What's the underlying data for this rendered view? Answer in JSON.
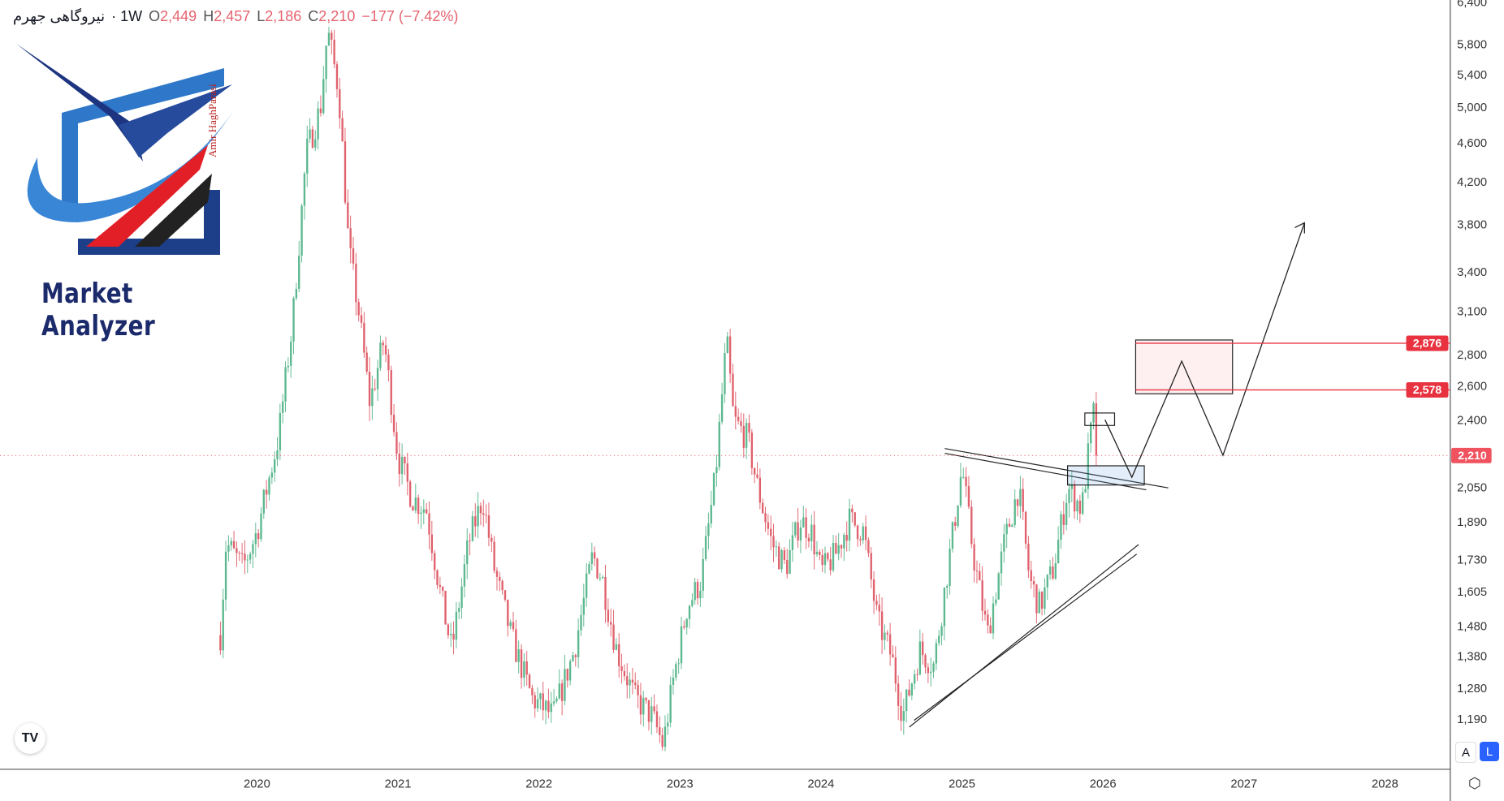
{
  "header": {
    "symbol": "نیروگاهی جهرم",
    "interval": "· 1W",
    "open_label": "O",
    "open": "2,449",
    "high_label": "H",
    "high": "2,457",
    "low_label": "L",
    "low": "2,186",
    "close_label": "C",
    "close": "2,210",
    "change": "−177 (−7.42%)"
  },
  "logo": {
    "title": "Market Analyzer",
    "author": "Amir HaghParasi"
  },
  "colors": {
    "up": "#5cb88f",
    "down": "#e0616c",
    "level": "#e8323f",
    "last_price": "#f0525f",
    "accent": "#2962ff"
  },
  "chart_data": {
    "type": "candlestick",
    "scale": "log",
    "ylim": [
      1100,
      6400
    ],
    "xlim": [
      2019.5,
      2028.4
    ],
    "y_ticks": [
      "6,400",
      "5,800",
      "5,400",
      "5,000",
      "4,600",
      "4,200",
      "3,800",
      "3,400",
      "3,100",
      "2,800",
      "2,600",
      "2,400",
      "2,050",
      "1,890",
      "1,730",
      "1,605",
      "1,480",
      "1,380",
      "1,280",
      "1,190"
    ],
    "y_tick_values": [
      6400,
      5800,
      5400,
      5000,
      4600,
      4200,
      3800,
      3400,
      3100,
      2800,
      2600,
      2400,
      2050,
      1890,
      1730,
      1605,
      1480,
      1380,
      1280,
      1190
    ],
    "x_ticks": [
      "2020",
      "2021",
      "2022",
      "2023",
      "2024",
      "2025",
      "2026",
      "2027",
      "2028"
    ],
    "approx_close_path": [
      [
        2019.74,
        1450
      ],
      [
        2019.78,
        1800
      ],
      [
        2019.9,
        1700
      ],
      [
        2020.0,
        1850
      ],
      [
        2020.15,
        2300
      ],
      [
        2020.25,
        3000
      ],
      [
        2020.35,
        4500
      ],
      [
        2020.45,
        5000
      ],
      [
        2020.5,
        6000
      ],
      [
        2020.58,
        5200
      ],
      [
        2020.65,
        3600
      ],
      [
        2020.72,
        3100
      ],
      [
        2020.8,
        2500
      ],
      [
        2020.9,
        2900
      ],
      [
        2021.0,
        2200
      ],
      [
        2021.1,
        2000
      ],
      [
        2021.2,
        1950
      ],
      [
        2021.3,
        1600
      ],
      [
        2021.38,
        1400
      ],
      [
        2021.5,
        1800
      ],
      [
        2021.6,
        2000
      ],
      [
        2021.68,
        1700
      ],
      [
        2021.8,
        1450
      ],
      [
        2021.95,
        1250
      ],
      [
        2022.1,
        1200
      ],
      [
        2022.25,
        1400
      ],
      [
        2022.38,
        1750
      ],
      [
        2022.45,
        1650
      ],
      [
        2022.55,
        1400
      ],
      [
        2022.68,
        1250
      ],
      [
        2022.8,
        1200
      ],
      [
        2022.88,
        1120
      ],
      [
        2022.95,
        1300
      ],
      [
        2023.05,
        1550
      ],
      [
        2023.15,
        1650
      ],
      [
        2023.25,
        2100
      ],
      [
        2023.33,
        2900
      ],
      [
        2023.38,
        2400
      ],
      [
        2023.48,
        2300
      ],
      [
        2023.55,
        2050
      ],
      [
        2023.65,
        1800
      ],
      [
        2023.75,
        1700
      ],
      [
        2023.85,
        1900
      ],
      [
        2023.93,
        1850
      ],
      [
        2024.0,
        1680
      ],
      [
        2024.1,
        1750
      ],
      [
        2024.2,
        1900
      ],
      [
        2024.3,
        1850
      ],
      [
        2024.4,
        1500
      ],
      [
        2024.5,
        1380
      ],
      [
        2024.58,
        1200
      ],
      [
        2024.7,
        1400
      ],
      [
        2024.8,
        1350
      ],
      [
        2024.9,
        1700
      ],
      [
        2025.0,
        2150
      ],
      [
        2025.08,
        1750
      ],
      [
        2025.18,
        1450
      ],
      [
        2025.3,
        1800
      ],
      [
        2025.4,
        2050
      ],
      [
        2025.48,
        1650
      ],
      [
        2025.55,
        1550
      ],
      [
        2025.65,
        1700
      ],
      [
        2025.75,
        2050
      ],
      [
        2025.85,
        1950
      ],
      [
        2025.93,
        2449
      ],
      [
        2025.97,
        2210
      ]
    ],
    "last_price": {
      "value": 2210,
      "label": "2,210"
    },
    "levels": [
      {
        "value": 2876,
        "label": "2,876"
      },
      {
        "value": 2578,
        "label": "2,578"
      }
    ]
  },
  "controls": {
    "auto": "A",
    "log": "L",
    "tv_logo": "TV"
  }
}
